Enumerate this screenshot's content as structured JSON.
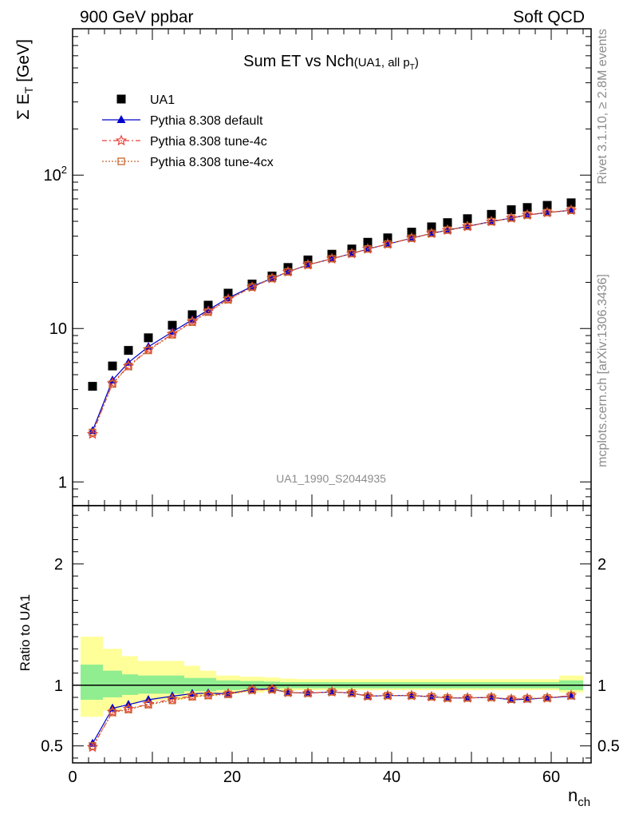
{
  "header": {
    "left": "900 GeV ppbar",
    "right": "Soft QCD"
  },
  "side_labels": {
    "rivet": "Rivet 3.1.10, ≥ 2.8M events",
    "mcplots": "mcplots.cern.ch [arXiv:1306.3436]"
  },
  "watermark": "UA1_1990_S2044935",
  "colors": {
    "data": "#000000",
    "default": "#0000cc",
    "tune4c": "#e8423a",
    "tune4cx": "#c8642a",
    "band_inner": "#90ee90",
    "band_outer": "#ffff99"
  },
  "chart_data": [
    {
      "type": "scatter",
      "title": {
        "main": "Sum ET vs Nch",
        "sub": "(UA1, all p",
        "sub_index": "T",
        "sub_close": ")"
      },
      "ylabel": {
        "main": "Σ E",
        "index": "T",
        "unit": " [GeV]"
      },
      "yscale": "log",
      "ylim": [
        0.7,
        900
      ],
      "xlim": [
        0,
        65
      ],
      "yticks": [
        {
          "value": 1,
          "label": "1"
        },
        {
          "value": 10,
          "label": "10"
        },
        {
          "value": 100,
          "label": "10",
          "exp": "2"
        }
      ],
      "legend_position": "top-left",
      "x": [
        2.5,
        5,
        7,
        9.5,
        12.5,
        15,
        17,
        19.5,
        22.5,
        25,
        27,
        29.5,
        32.5,
        35,
        37,
        39.5,
        42.5,
        45,
        47,
        49.5,
        52.5,
        55,
        57,
        59.5,
        62.5
      ],
      "series": [
        {
          "name": "UA1",
          "key": "data",
          "marker": "square",
          "values": [
            4.2,
            5.7,
            7.2,
            8.7,
            10.5,
            12.3,
            14.2,
            17.0,
            19.5,
            22.0,
            25.0,
            28.0,
            30.5,
            33.0,
            36.5,
            39.0,
            42.5,
            46.0,
            49.0,
            52.0,
            55.5,
            59.5,
            61.5,
            63.5,
            66.0
          ]
        },
        {
          "name": "Pythia 8.308 default",
          "key": "default",
          "marker": "triangle",
          "values": [
            2.15,
            4.6,
            6.0,
            7.6,
            9.5,
            11.4,
            13.2,
            15.8,
            18.8,
            21.2,
            23.4,
            26.0,
            28.5,
            30.8,
            33.0,
            35.5,
            38.8,
            41.7,
            43.8,
            46.3,
            49.8,
            52.5,
            55.0,
            57.0,
            59.0
          ]
        },
        {
          "name": "Pythia 8.308 tune-4c",
          "key": "tune4c",
          "marker": "star",
          "values": [
            2.05,
            4.4,
            5.7,
            7.3,
            9.2,
            11.1,
            12.9,
            15.5,
            18.6,
            21.2,
            23.4,
            26.0,
            28.5,
            30.8,
            33.0,
            35.5,
            38.8,
            41.7,
            43.8,
            46.3,
            49.8,
            52.5,
            55.0,
            57.0,
            59.0
          ]
        },
        {
          "name": "Pythia 8.308 tune-4cx",
          "key": "tune4cx",
          "marker": "open-square",
          "values": [
            2.1,
            4.35,
            5.65,
            7.2,
            9.1,
            11.0,
            12.8,
            15.4,
            18.6,
            21.2,
            23.4,
            26.0,
            28.5,
            30.8,
            33.0,
            35.5,
            38.8,
            41.7,
            43.8,
            46.3,
            49.8,
            52.5,
            55.0,
            57.0,
            59.0
          ]
        }
      ]
    },
    {
      "type": "line",
      "ylabel": "Ratio to UA1",
      "xlabel": {
        "main": "n",
        "index": "ch"
      },
      "xlim": [
        0,
        65
      ],
      "ylim": [
        0.36,
        2.48
      ],
      "xticks": [
        {
          "value": 0,
          "label": "0"
        },
        {
          "value": 20,
          "label": "20"
        },
        {
          "value": 40,
          "label": "40"
        },
        {
          "value": 60,
          "label": "60"
        }
      ],
      "yticks": [
        {
          "value": 0.5,
          "label": "0.5"
        },
        {
          "value": 1,
          "label": "1"
        },
        {
          "value": 2,
          "label": "2"
        }
      ],
      "bins": [
        [
          1,
          3.8
        ],
        [
          3.8,
          6.2
        ],
        [
          6.2,
          8.2
        ],
        [
          8.2,
          11
        ],
        [
          11,
          14
        ],
        [
          14,
          16
        ],
        [
          16,
          18
        ],
        [
          18,
          21
        ],
        [
          21,
          24
        ],
        [
          24,
          26
        ],
        [
          26,
          28
        ],
        [
          28,
          31
        ],
        [
          31,
          34
        ],
        [
          34,
          36
        ],
        [
          36,
          38
        ],
        [
          38,
          41
        ],
        [
          41,
          44
        ],
        [
          44,
          46
        ],
        [
          46,
          48
        ],
        [
          48,
          51
        ],
        [
          51,
          54
        ],
        [
          54,
          56
        ],
        [
          56,
          58
        ],
        [
          58,
          61
        ],
        [
          61,
          64
        ]
      ],
      "band_inner": [
        [
          0.88,
          1.17
        ],
        [
          0.9,
          1.12
        ],
        [
          0.92,
          1.09
        ],
        [
          0.93,
          1.08
        ],
        [
          0.93,
          1.08
        ],
        [
          0.95,
          1.06
        ],
        [
          0.95,
          1.06
        ],
        [
          0.96,
          1.04
        ],
        [
          0.965,
          1.035
        ],
        [
          0.97,
          1.03
        ],
        [
          0.975,
          1.025
        ],
        [
          0.975,
          1.025
        ],
        [
          0.975,
          1.025
        ],
        [
          0.975,
          1.025
        ],
        [
          0.975,
          1.025
        ],
        [
          0.975,
          1.025
        ],
        [
          0.975,
          1.025
        ],
        [
          0.975,
          1.025
        ],
        [
          0.975,
          1.025
        ],
        [
          0.975,
          1.025
        ],
        [
          0.975,
          1.025
        ],
        [
          0.975,
          1.025
        ],
        [
          0.975,
          1.025
        ],
        [
          0.975,
          1.025
        ],
        [
          0.96,
          1.04
        ]
      ],
      "band_outer": [
        [
          0.74,
          1.4
        ],
        [
          0.79,
          1.3
        ],
        [
          0.84,
          1.24
        ],
        [
          0.87,
          1.2
        ],
        [
          0.88,
          1.2
        ],
        [
          0.9,
          1.16
        ],
        [
          0.91,
          1.12
        ],
        [
          0.93,
          1.08
        ],
        [
          0.94,
          1.07
        ],
        [
          0.95,
          1.065
        ],
        [
          0.955,
          1.055
        ],
        [
          0.96,
          1.05
        ],
        [
          0.96,
          1.05
        ],
        [
          0.96,
          1.05
        ],
        [
          0.96,
          1.05
        ],
        [
          0.96,
          1.05
        ],
        [
          0.96,
          1.05
        ],
        [
          0.96,
          1.05
        ],
        [
          0.96,
          1.05
        ],
        [
          0.96,
          1.05
        ],
        [
          0.96,
          1.05
        ],
        [
          0.96,
          1.05
        ],
        [
          0.96,
          1.05
        ],
        [
          0.96,
          1.05
        ],
        [
          0.94,
          1.08
        ]
      ],
      "x": [
        2.5,
        5,
        7,
        9.5,
        12.5,
        15,
        17,
        19.5,
        22.5,
        25,
        27,
        29.5,
        32.5,
        35,
        37,
        39.5,
        42.5,
        45,
        47,
        49.5,
        52.5,
        55,
        57,
        59.5,
        62.5
      ],
      "series": [
        {
          "name": "Pythia 8.308 default",
          "key": "default",
          "marker": "triangle",
          "values": [
            0.52,
            0.81,
            0.84,
            0.88,
            0.91,
            0.93,
            0.935,
            0.93,
            0.965,
            0.97,
            0.94,
            0.935,
            0.945,
            0.935,
            0.91,
            0.915,
            0.915,
            0.905,
            0.895,
            0.895,
            0.9,
            0.88,
            0.885,
            0.895,
            0.91
          ]
        },
        {
          "name": "Pythia 8.308 tune-4c",
          "key": "tune4c",
          "marker": "star",
          "values": [
            0.49,
            0.78,
            0.805,
            0.845,
            0.885,
            0.91,
            0.92,
            0.93,
            0.96,
            0.965,
            0.94,
            0.935,
            0.945,
            0.935,
            0.91,
            0.915,
            0.915,
            0.905,
            0.895,
            0.895,
            0.9,
            0.885,
            0.89,
            0.895,
            0.915
          ]
        },
        {
          "name": "Pythia 8.308 tune-4cx",
          "key": "tune4cx",
          "marker": "open-square",
          "values": [
            0.5,
            0.775,
            0.8,
            0.84,
            0.875,
            0.905,
            0.915,
            0.925,
            0.96,
            0.965,
            0.94,
            0.935,
            0.945,
            0.935,
            0.91,
            0.915,
            0.915,
            0.905,
            0.895,
            0.895,
            0.9,
            0.885,
            0.89,
            0.895,
            0.915
          ]
        }
      ]
    }
  ]
}
